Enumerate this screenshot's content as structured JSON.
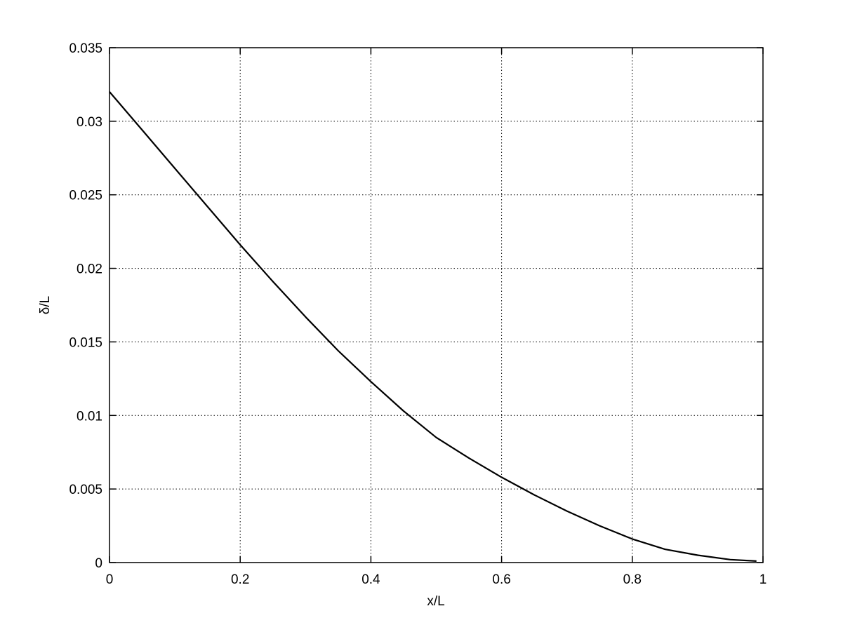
{
  "chart_data": {
    "type": "line",
    "title": "",
    "xlabel": "x/L",
    "ylabel": "δ/L",
    "xlim": [
      0,
      1
    ],
    "ylim": [
      0,
      0.035
    ],
    "xticks": [
      0,
      0.2,
      0.4,
      0.6,
      0.8,
      1
    ],
    "xtick_labels": [
      "0",
      "0.2",
      "0.4",
      "0.6",
      "0.8",
      "1"
    ],
    "yticks": [
      0,
      0.005,
      0.01,
      0.015,
      0.02,
      0.025,
      0.03,
      0.035
    ],
    "ytick_labels": [
      "0",
      "0.005",
      "0.01",
      "0.015",
      "0.02",
      "0.025",
      "0.03",
      "0.035"
    ],
    "grid": true,
    "grid_style": "dotted",
    "legend": "none",
    "series": [
      {
        "color": "#000000",
        "x": [
          0,
          0.05,
          0.1,
          0.15,
          0.2,
          0.25,
          0.3,
          0.35,
          0.4,
          0.45,
          0.5,
          0.55,
          0.6,
          0.65,
          0.7,
          0.75,
          0.8,
          0.85,
          0.9,
          0.95,
          0.99
        ],
        "y": [
          0.032,
          0.0294,
          0.0268,
          0.0242,
          0.0216,
          0.0191,
          0.0167,
          0.0144,
          0.0123,
          0.0103,
          0.0085,
          0.0071,
          0.0058,
          0.0046,
          0.0035,
          0.0025,
          0.0016,
          0.0009,
          0.0005,
          0.0002,
          0.0001
        ]
      }
    ]
  }
}
